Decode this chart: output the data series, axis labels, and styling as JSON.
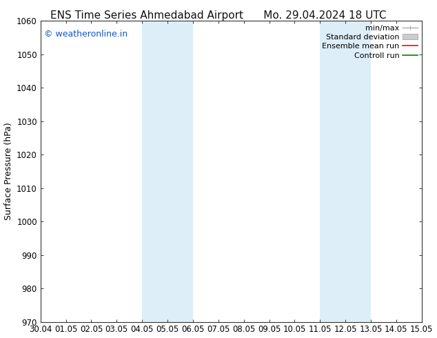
{
  "title_left": "ENS Time Series Ahmedabad Airport",
  "title_right": "Mo. 29.04.2024 18 UTC",
  "ylabel": "Surface Pressure (hPa)",
  "ylim": [
    970,
    1060
  ],
  "yticks": [
    970,
    980,
    990,
    1000,
    1010,
    1020,
    1030,
    1040,
    1050,
    1060
  ],
  "xticks": [
    "30.04",
    "01.05",
    "02.05",
    "03.05",
    "04.05",
    "05.05",
    "06.05",
    "07.05",
    "08.05",
    "09.05",
    "10.05",
    "11.05",
    "12.05",
    "13.05",
    "14.05",
    "15.05"
  ],
  "shaded_regions": [
    {
      "xstart": 4,
      "xend": 6,
      "color": "#ddeef8"
    },
    {
      "xstart": 11,
      "xend": 13,
      "color": "#ddeef8"
    }
  ],
  "watermark_text": "© weatheronline.in",
  "watermark_color": "#1155cc",
  "background_color": "#ffffff",
  "legend": [
    {
      "label": "min/max",
      "color": "#aaaaaa",
      "lw": 1.0,
      "linestyle": "-",
      "style": "minmax"
    },
    {
      "label": "Standard deviation",
      "color": "#cccccc",
      "lw": 5,
      "linestyle": "-",
      "style": "band"
    },
    {
      "label": "Ensemble mean run",
      "color": "red",
      "lw": 1.2,
      "linestyle": "-",
      "style": "line"
    },
    {
      "label": "Controll run",
      "color": "green",
      "lw": 1.2,
      "linestyle": "-",
      "style": "line"
    }
  ],
  "title_fontsize": 11,
  "axis_label_fontsize": 9,
  "tick_fontsize": 8.5,
  "legend_fontsize": 8,
  "watermark_fontsize": 9
}
